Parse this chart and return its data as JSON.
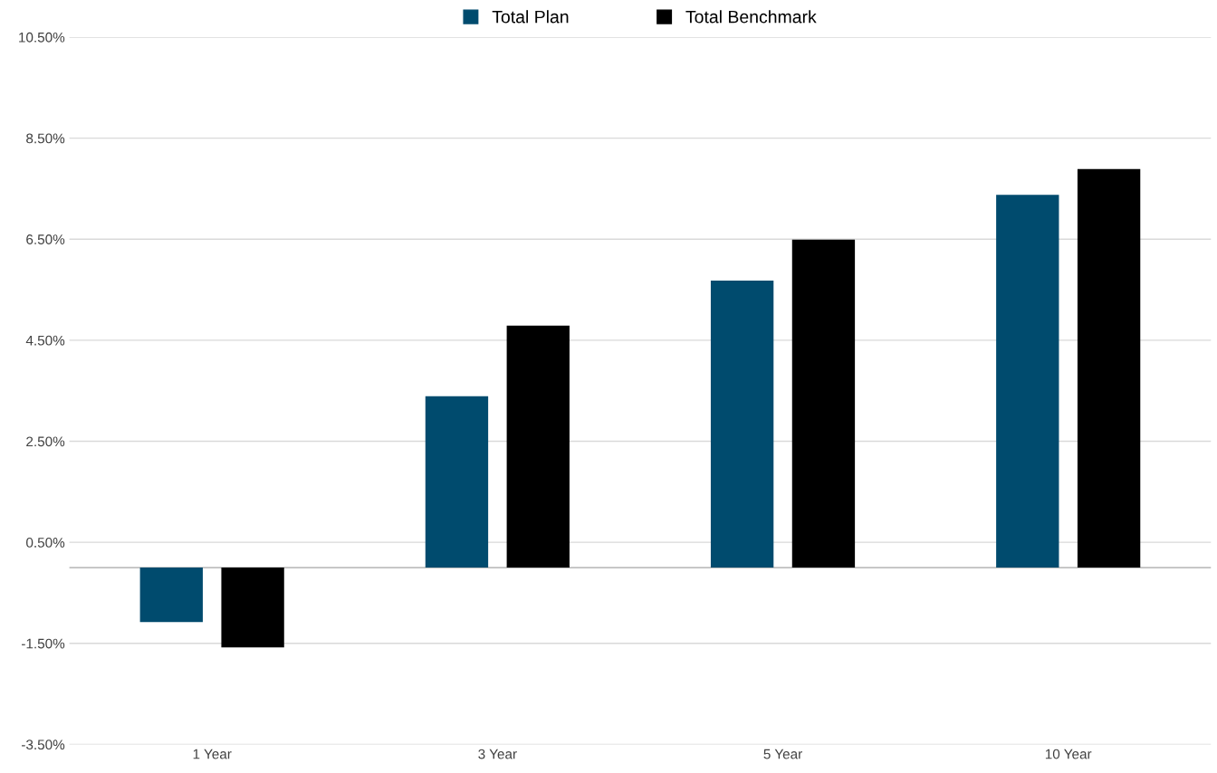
{
  "chart_data": {
    "type": "bar",
    "categories": [
      "1 Year",
      "3 Year",
      "5 Year",
      "10 Year"
    ],
    "series": [
      {
        "name": "Total Plan",
        "color": "#004b6e",
        "values": [
          -1.08,
          3.39,
          5.68,
          7.38
        ]
      },
      {
        "name": "Total Benchmark",
        "color": "#000000",
        "values": [
          -1.58,
          4.79,
          6.49,
          7.89
        ]
      }
    ],
    "ylim": [
      -3.5,
      10.5
    ],
    "yticks": [
      {
        "value": -3.5,
        "label": "-3.50%"
      },
      {
        "value": -1.5,
        "label": "-1.50%"
      },
      {
        "value": 0.5,
        "label": "0.50%"
      },
      {
        "value": 2.5,
        "label": "2.50%"
      },
      {
        "value": 4.5,
        "label": "4.50%"
      },
      {
        "value": 6.5,
        "label": "6.50%"
      },
      {
        "value": 8.5,
        "label": "8.50%"
      },
      {
        "value": 10.5,
        "label": "10.50%"
      }
    ],
    "ref_lines": [
      {
        "axis": "y",
        "value": 0,
        "color": "#bfbfbf"
      }
    ],
    "grid": "y",
    "legend": "top"
  }
}
